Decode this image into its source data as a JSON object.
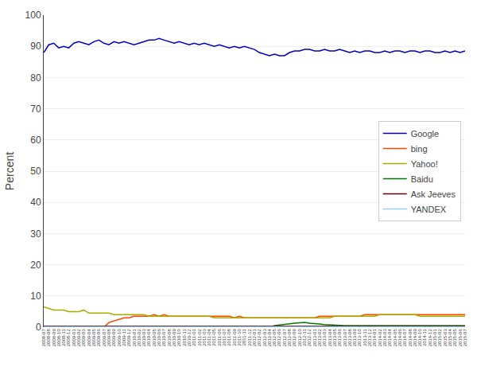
{
  "chart_data": {
    "type": "line",
    "ylabel": "Percent",
    "ylim": [
      0,
      100
    ],
    "yticks": [
      0,
      10,
      20,
      30,
      40,
      50,
      60,
      70,
      80,
      90,
      100
    ],
    "grid": true,
    "legend": "right",
    "categories": [
      "2008-07",
      "2008-08",
      "2008-09",
      "2008-10",
      "2008-11",
      "2008-12",
      "2009-01",
      "2009-02",
      "2009-03",
      "2009-04",
      "2009-05",
      "2009-06",
      "2009-07",
      "2009-08",
      "2009-09",
      "2009-10",
      "2009-11",
      "2009-12",
      "2010-01",
      "2010-02",
      "2010-03",
      "2010-04",
      "2010-05",
      "2010-06",
      "2010-07",
      "2010-08",
      "2010-09",
      "2010-10",
      "2010-11",
      "2010-12",
      "2011-01",
      "2011-02",
      "2011-03",
      "2011-04",
      "2011-05",
      "2011-06",
      "2011-07",
      "2011-08",
      "2011-09",
      "2011-10",
      "2011-11",
      "2011-12",
      "2012-01",
      "2012-02",
      "2012-03",
      "2012-04",
      "2012-05",
      "2012-06",
      "2012-07",
      "2012-08",
      "2012-09",
      "2012-10",
      "2012-11",
      "2012-12",
      "2013-01",
      "2013-02",
      "2013-03",
      "2013-04",
      "2013-05",
      "2013-06",
      "2013-07",
      "2013-08",
      "2013-09",
      "2013-10",
      "2013-11",
      "2013-12",
      "2014-01",
      "2014-02",
      "2014-03",
      "2014-04",
      "2014-05",
      "2014-06",
      "2014-07",
      "2014-08",
      "2014-09",
      "2014-10",
      "2014-11",
      "2014-12",
      "2015-01",
      "2015-02",
      "2015-03",
      "2015-04",
      "2015-05",
      "2015-06",
      "2015-07"
    ],
    "series": [
      {
        "name": "Google",
        "color": "#0000cc",
        "values": [
          88.0,
          90.5,
          91.0,
          89.5,
          90.0,
          89.5,
          91.0,
          91.5,
          91.0,
          90.5,
          91.5,
          92.0,
          91.0,
          90.5,
          91.5,
          91.0,
          91.5,
          91.0,
          90.5,
          91.0,
          91.5,
          92.0,
          92.0,
          92.5,
          92.0,
          91.5,
          91.0,
          91.5,
          91.0,
          90.5,
          91.0,
          90.5,
          91.0,
          90.5,
          90.0,
          90.5,
          90.0,
          89.5,
          90.0,
          89.5,
          90.0,
          89.5,
          89.0,
          88.0,
          87.5,
          87.0,
          87.5,
          87.0,
          87.0,
          88.0,
          88.5,
          88.5,
          89.0,
          89.0,
          88.5,
          88.5,
          89.0,
          88.5,
          88.5,
          89.0,
          88.5,
          88.0,
          88.5,
          88.0,
          88.5,
          88.5,
          88.0,
          88.0,
          88.5,
          88.0,
          88.5,
          88.5,
          88.0,
          88.5,
          88.5,
          88.0,
          88.5,
          88.5,
          88.0,
          88.0,
          88.5,
          88.0,
          88.5,
          88.0,
          88.5
        ]
      },
      {
        "name": "bing",
        "color": "#ff4400",
        "values": [
          0.0,
          0.0,
          0.0,
          0.0,
          0.0,
          0.0,
          0.0,
          0.0,
          0.0,
          0.0,
          0.0,
          0.0,
          0.0,
          1.5,
          2.0,
          2.5,
          3.0,
          3.0,
          3.5,
          3.5,
          3.5,
          3.5,
          4.0,
          3.5,
          4.0,
          3.5,
          3.5,
          3.5,
          3.5,
          3.5,
          3.5,
          3.5,
          3.5,
          3.5,
          3.5,
          3.5,
          3.5,
          3.5,
          3.0,
          3.5,
          3.0,
          3.0,
          3.0,
          3.0,
          3.0,
          3.0,
          3.0,
          3.0,
          3.0,
          3.0,
          3.0,
          3.0,
          3.0,
          3.0,
          3.0,
          3.5,
          3.5,
          3.5,
          3.5,
          3.5,
          3.5,
          3.5,
          3.5,
          3.5,
          4.0,
          4.0,
          4.0,
          4.0,
          4.0,
          4.0,
          4.0,
          4.0,
          4.0,
          4.0,
          4.0,
          4.0,
          4.0,
          4.0,
          4.0,
          4.0,
          4.0,
          4.0,
          4.0,
          4.0,
          4.0
        ]
      },
      {
        "name": "Yahoo!",
        "color": "#aaaa00",
        "values": [
          6.5,
          6.0,
          5.5,
          5.5,
          5.5,
          5.0,
          5.0,
          5.0,
          5.5,
          4.5,
          4.5,
          4.5,
          4.5,
          4.5,
          4.0,
          4.0,
          4.0,
          4.0,
          4.0,
          4.0,
          4.0,
          3.5,
          3.5,
          3.5,
          3.5,
          3.5,
          3.5,
          3.5,
          3.5,
          3.5,
          3.5,
          3.5,
          3.5,
          3.5,
          3.0,
          3.0,
          3.0,
          3.0,
          3.0,
          3.0,
          3.0,
          3.0,
          3.0,
          3.0,
          3.0,
          3.0,
          3.0,
          3.0,
          3.0,
          3.0,
          3.0,
          3.0,
          3.0,
          3.0,
          3.0,
          3.0,
          3.0,
          3.0,
          3.5,
          3.5,
          3.5,
          3.5,
          3.5,
          3.5,
          3.5,
          3.5,
          3.5,
          4.0,
          4.0,
          4.0,
          4.0,
          4.0,
          4.0,
          4.0,
          4.0,
          3.5,
          3.5,
          3.5,
          3.5,
          3.5,
          3.5,
          3.5,
          3.5,
          3.5,
          3.5
        ]
      },
      {
        "name": "Baidu",
        "color": "#007700",
        "values": [
          0.0,
          0.0,
          0.0,
          0.0,
          0.0,
          0.0,
          0.0,
          0.0,
          0.0,
          0.0,
          0.0,
          0.0,
          0.0,
          0.0,
          0.0,
          0.0,
          0.0,
          0.0,
          0.0,
          0.0,
          0.0,
          0.0,
          0.0,
          0.0,
          0.0,
          0.0,
          0.0,
          0.0,
          0.0,
          0.0,
          0.0,
          0.0,
          0.0,
          0.0,
          0.0,
          0.0,
          0.0,
          0.0,
          0.0,
          0.0,
          0.0,
          0.0,
          0.0,
          0.0,
          0.0,
          0.0,
          0.5,
          0.7,
          0.9,
          1.2,
          1.3,
          1.4,
          1.5,
          1.3,
          1.2,
          1.0,
          0.8,
          0.7,
          0.7,
          0.6,
          0.5,
          0.5,
          0.5,
          0.5,
          0.5,
          0.5,
          0.5,
          0.5,
          0.5,
          0.5,
          0.5,
          0.5,
          0.5,
          0.5,
          0.5,
          0.5,
          0.5,
          0.5,
          0.5,
          0.5,
          0.5,
          0.5,
          0.5,
          0.5,
          0.5
        ]
      },
      {
        "name": "Ask Jeeves",
        "color": "#660000",
        "values": [
          0.3,
          0.3,
          0.3,
          0.3,
          0.3,
          0.3,
          0.3,
          0.3,
          0.3,
          0.3,
          0.3,
          0.3,
          0.3,
          0.3,
          0.3,
          0.3,
          0.3,
          0.3,
          0.3,
          0.3,
          0.3,
          0.3,
          0.3,
          0.3,
          0.3,
          0.3,
          0.3,
          0.3,
          0.3,
          0.3,
          0.3,
          0.3,
          0.3,
          0.3,
          0.3,
          0.3,
          0.3,
          0.3,
          0.3,
          0.3,
          0.3,
          0.3,
          0.3,
          0.3,
          0.3,
          0.3,
          0.3,
          0.3,
          0.3,
          0.3,
          0.3,
          0.3,
          0.3,
          0.3,
          0.3,
          0.3,
          0.3,
          0.3,
          0.3,
          0.3,
          0.3,
          0.3,
          0.3,
          0.3,
          0.3,
          0.3,
          0.3,
          0.3,
          0.3,
          0.3,
          0.3,
          0.3,
          0.3,
          0.3,
          0.3,
          0.3,
          0.3,
          0.3,
          0.3,
          0.3,
          0.3,
          0.3,
          0.3,
          0.3,
          0.3
        ]
      },
      {
        "name": "YANDEX",
        "color": "#99ccff",
        "values": [
          0.1,
          0.1,
          0.1,
          0.1,
          0.1,
          0.1,
          0.1,
          0.1,
          0.1,
          0.1,
          0.1,
          0.1,
          0.1,
          0.1,
          0.1,
          0.1,
          0.1,
          0.1,
          0.1,
          0.1,
          0.1,
          0.1,
          0.1,
          0.1,
          0.1,
          0.1,
          0.1,
          0.1,
          0.1,
          0.1,
          0.1,
          0.1,
          0.1,
          0.1,
          0.1,
          0.1,
          0.1,
          0.1,
          0.1,
          0.1,
          0.1,
          0.1,
          0.1,
          0.1,
          0.1,
          0.1,
          0.1,
          0.1,
          0.1,
          0.1,
          0.1,
          0.1,
          0.1,
          0.1,
          0.1,
          0.1,
          0.1,
          0.1,
          0.1,
          0.1,
          0.1,
          0.1,
          0.1,
          0.1,
          0.1,
          0.1,
          0.1,
          0.1,
          0.1,
          0.1,
          0.1,
          0.1,
          0.1,
          0.1,
          0.1,
          0.1,
          0.1,
          0.1,
          0.1,
          0.1,
          0.1,
          0.1,
          0.1,
          0.1,
          0.1
        ]
      }
    ]
  }
}
